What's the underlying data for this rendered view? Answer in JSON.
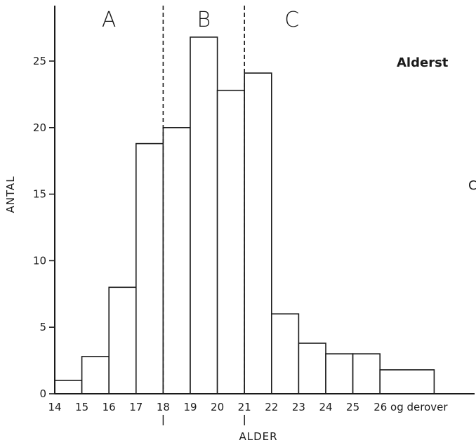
{
  "chart_data": {
    "type": "bar",
    "title": "Alderst",
    "side_text": "C",
    "xlabel": "ALDER",
    "ylabel": "ANTAL",
    "x_tick_labels": [
      "14",
      "15",
      "16",
      "17",
      "18",
      "19",
      "20",
      "21",
      "22",
      "23",
      "24",
      "25",
      "26 og derover"
    ],
    "y_ticks": [
      0,
      5,
      10,
      15,
      20,
      25
    ],
    "ylim": [
      0,
      29
    ],
    "bins": [
      {
        "from": 14,
        "to": 15,
        "value": 1
      },
      {
        "from": 15,
        "to": 16,
        "value": 2.8
      },
      {
        "from": 16,
        "to": 17,
        "value": 8
      },
      {
        "from": 17,
        "to": 18,
        "value": 18.8
      },
      {
        "from": 18,
        "to": 19,
        "value": 20
      },
      {
        "from": 19,
        "to": 20,
        "value": 26.8
      },
      {
        "from": 20,
        "to": 21,
        "value": 22.8
      },
      {
        "from": 21,
        "to": 22,
        "value": 24.1
      },
      {
        "from": 22,
        "to": 23,
        "value": 6
      },
      {
        "from": 23,
        "to": 24,
        "value": 3.8
      },
      {
        "from": 24,
        "to": 25,
        "value": 3
      },
      {
        "from": 25,
        "to": 26,
        "value": 3
      },
      {
        "from": 26,
        "to": 28,
        "value": 1.8
      }
    ],
    "regions": [
      {
        "label": "A",
        "from": 14,
        "to": 18
      },
      {
        "label": "B",
        "from": 18,
        "to": 21
      },
      {
        "label": "C",
        "from": 21,
        "to": 24.5
      }
    ],
    "dividers": [
      18,
      21
    ],
    "grid": false,
    "colors": {
      "bar_fill": "#ffffff",
      "stroke": "#1a1a1a"
    }
  }
}
